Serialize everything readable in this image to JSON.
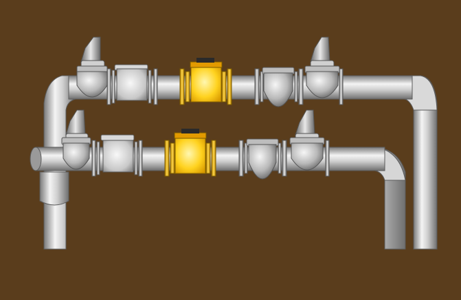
{
  "colors": {
    "background": "#5a3d1c",
    "pipe_light": "#f4f4f4",
    "pipe_mid": "#bdbdbd",
    "pipe_dark": "#6f6f6f",
    "meter_light": "#fff4a0",
    "meter_mid": "#ffd21e",
    "meter_dark": "#d89a00",
    "meter_head": "#e29a00",
    "meter_top": "#2a2a2a"
  },
  "lines": [
    {
      "id": "upper",
      "components": [
        "pressure-regulator",
        "strainer",
        "gas-meter",
        "filter",
        "pressure-regulator"
      ]
    },
    {
      "id": "lower",
      "components": [
        "pressure-regulator",
        "strainer",
        "gas-meter",
        "filter",
        "pressure-regulator"
      ]
    }
  ]
}
